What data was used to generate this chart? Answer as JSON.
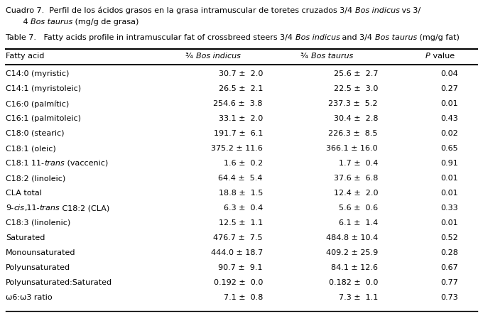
{
  "bg_color": "#ffffff",
  "font_size": 8.0,
  "title_font_size": 8.0,
  "rows": [
    [
      "C14:0 (myristic)",
      "30.7 ±  2.0",
      "25.6 ±  2.7",
      "0.04"
    ],
    [
      "C14:1 (myristoleic)",
      "26.5 ±  2.1",
      "22.5 ±  3.0",
      "0.27"
    ],
    [
      "C16:0 (palmític)",
      "254.6 ±  3.8",
      "237.3 ±  5.2",
      "0.01"
    ],
    [
      "C16:1 (palmitoleic)",
      "33.1 ±  2.0",
      "30.4 ±  2.8",
      "0.43"
    ],
    [
      "C18:0 (stearic)",
      "191.7 ±  6.1",
      "226.3 ±  8.5",
      "0.02"
    ],
    [
      "C18:1 (oleic)",
      "375.2 ± 11.6",
      "366.1 ± 16.0",
      "0.65"
    ],
    [
      "C18:1 11-$\\mathit{trans}$ (vaccenic)",
      "1.6 ±  0.2",
      "1.7 ±  0.4",
      "0.91"
    ],
    [
      "C18:2 (linoleic)",
      "64.4 ±  5.4",
      "37.6 ±  6.8",
      "0.01"
    ],
    [
      "CLA total",
      "18.8 ±  1.5",
      "12.4 ±  2.0",
      "0.01"
    ],
    [
      "9-$\\mathit{cis}$,11-$\\mathit{trans}$ C18:2 (CLA)",
      "6.3 ±  0.4",
      "5.6 ±  0.6",
      "0.33"
    ],
    [
      "C18:3 (linolenic)",
      "12.5 ±  1.1",
      "6.1 ±  1.4",
      "0.01"
    ],
    [
      "Saturated",
      "476.7 ±  7.5",
      "484.8 ± 10.4",
      "0.52"
    ],
    [
      "Monounsaturated",
      "444.0 ± 18.7",
      "409.2 ± 25.9",
      "0.28"
    ],
    [
      "Polyunsaturated",
      "90.7 ±  9.1",
      "84.1 ± 12.6",
      "0.67"
    ],
    [
      "Polyunsaturated:Saturated",
      "0.192 ±  0.0",
      "0.182 ±  0.0",
      "0.77"
    ],
    [
      "ω6:ω3 ratio",
      "7.1 ±  0.8",
      "7.3 ±  1.1",
      "0.73"
    ]
  ]
}
